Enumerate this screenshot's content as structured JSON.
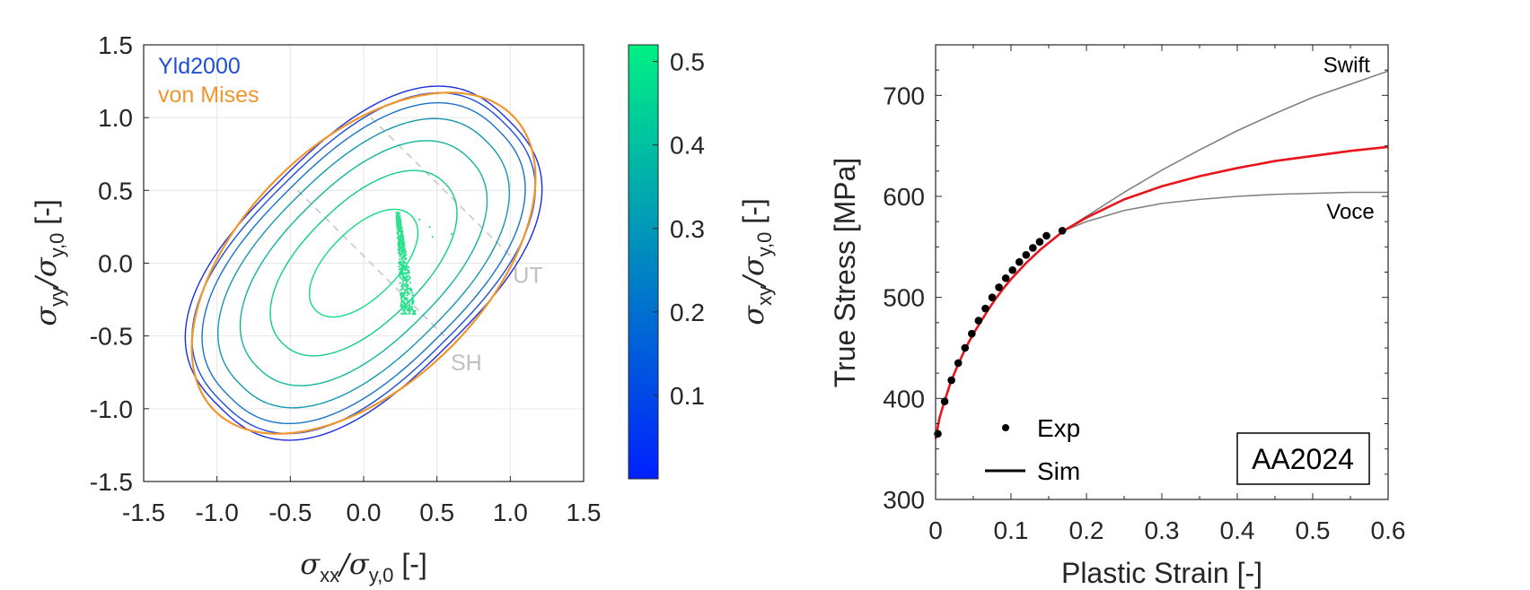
{
  "chart_data": [
    {
      "type": "line",
      "subtype": "yield-locus",
      "xlabel": {
        "main": "σ",
        "sub": "xx",
        "mid": "/σ",
        "sub2": "y,0",
        "tail": " [-]"
      },
      "ylabel": {
        "main": "σ",
        "sub": "yy",
        "mid": "/σ",
        "sub2": "y,0",
        "tail": " [-]"
      },
      "xlim": [
        -1.5,
        1.5
      ],
      "ylim": [
        -1.5,
        1.5
      ],
      "xticks": [
        "-1.5",
        "-1.0",
        "-0.5",
        "0.0",
        "0.5",
        "1.0",
        "1.5"
      ],
      "yticks": [
        "1.5",
        "1.0",
        "0.5",
        "0.0",
        "-0.5",
        "-1.0",
        "-1.5"
      ],
      "grid": true,
      "legend": [
        {
          "label": "Yld2000",
          "color": "#1f4fd6"
        },
        {
          "label": "von Mises",
          "color": "#f0962e"
        }
      ],
      "annotations": [
        {
          "text": "UT",
          "x": 1.12,
          "y": -0.08
        },
        {
          "text": "SH",
          "x": 0.7,
          "y": -0.68
        }
      ],
      "vonMises": {
        "semi_major": 1.414,
        "semi_minor": 0.816,
        "angle_deg": 45,
        "color": "#f0962e"
      },
      "contours": [
        {
          "level": 0.0,
          "scale": 1.0,
          "color": "#1d2ee0"
        },
        {
          "level": 0.08,
          "scale": 0.975,
          "color": "#1e4fd8"
        },
        {
          "level": 0.17,
          "scale": 0.93,
          "color": "#1a73c6"
        },
        {
          "level": 0.26,
          "scale": 0.85,
          "color": "#1497b0"
        },
        {
          "level": 0.34,
          "scale": 0.73,
          "color": "#11b59c"
        },
        {
          "level": 0.42,
          "scale": 0.56,
          "color": "#10cc8c"
        },
        {
          "level": 0.48,
          "scale": 0.33,
          "color": "#11dd82"
        }
      ],
      "guides": [
        {
          "from": [
            -0.45,
            0.5
          ],
          "to": [
            0.55,
            -0.5
          ]
        },
        {
          "from": [
            0.05,
            1.0
          ],
          "to": [
            1.05,
            0.0
          ]
        }
      ],
      "scatter_region": {
        "x": [
          0.22,
          0.34
        ],
        "y": [
          -0.35,
          0.35
        ],
        "color": "#2ee08f"
      },
      "colorbar": {
        "label": {
          "main": "σ",
          "sub": "xy",
          "mid": "/σ",
          "sub2": "y,0",
          "tail": " [-]"
        },
        "range": [
          0.0,
          0.52
        ],
        "ticks": [
          "0.5",
          "0.4",
          "0.3",
          "0.2",
          "0.1"
        ],
        "tick_values": [
          0.5,
          0.4,
          0.3,
          0.2,
          0.1
        ],
        "color_low": "#0020ff",
        "color_high": "#00f084"
      }
    },
    {
      "type": "line",
      "xlabel": "Plastic Strain [-]",
      "ylabel": "True Stress [MPa]",
      "xlim": [
        0,
        0.6
      ],
      "ylim": [
        300,
        750
      ],
      "xticks": [
        "0",
        "0.1",
        "0.2",
        "0.3",
        "0.4",
        "0.5",
        "0.6"
      ],
      "yticks": [
        "700",
        "600",
        "500",
        "400",
        "300"
      ],
      "series": [
        {
          "name": "Swift",
          "color": "#808080",
          "x": [
            0.17,
            0.25,
            0.3,
            0.35,
            0.4,
            0.45,
            0.5,
            0.55,
            0.6
          ],
          "y": [
            566,
            604,
            626,
            646,
            665,
            682,
            698,
            711,
            724
          ]
        },
        {
          "name": "Voce",
          "color": "#808080",
          "x": [
            0.17,
            0.2,
            0.25,
            0.3,
            0.35,
            0.4,
            0.45,
            0.5,
            0.55,
            0.6
          ],
          "y": [
            566,
            575,
            586,
            593,
            597,
            600,
            602,
            603,
            604,
            604
          ]
        },
        {
          "name": "Sim",
          "color": "#e8141c",
          "x": [
            0.0,
            0.005,
            0.01,
            0.02,
            0.03,
            0.04,
            0.05,
            0.06,
            0.07,
            0.08,
            0.09,
            0.1,
            0.11,
            0.12,
            0.13,
            0.14,
            0.15,
            0.17,
            0.2,
            0.25,
            0.3,
            0.35,
            0.4,
            0.45,
            0.5,
            0.55,
            0.6
          ],
          "y": [
            360,
            380,
            393,
            416,
            434,
            450,
            464,
            476,
            488,
            499,
            509,
            518,
            526,
            534,
            541,
            548,
            554,
            566,
            579,
            597,
            610,
            620,
            628,
            635,
            640,
            645,
            649
          ]
        },
        {
          "name": "Exp",
          "color": "#000000",
          "marker": "dot",
          "x": [
            0.003,
            0.012,
            0.021,
            0.03,
            0.039,
            0.048,
            0.057,
            0.066,
            0.075,
            0.084,
            0.093,
            0.102,
            0.111,
            0.12,
            0.129,
            0.138,
            0.147,
            0.168
          ],
          "y": [
            365,
            397,
            418,
            435,
            450,
            464,
            477,
            489,
            500,
            510,
            519,
            527,
            535,
            542,
            549,
            555,
            561,
            566
          ]
        }
      ],
      "labels": [
        {
          "text": "Swift",
          "x": 0.545,
          "y": 730
        },
        {
          "text": "Voce",
          "x": 0.55,
          "y": 585
        }
      ],
      "legend": {
        "items": [
          {
            "label": "Exp",
            "kind": "dot"
          },
          {
            "label": "Sim",
            "kind": "line"
          }
        ]
      },
      "annotation_box": "AA2024"
    }
  ]
}
